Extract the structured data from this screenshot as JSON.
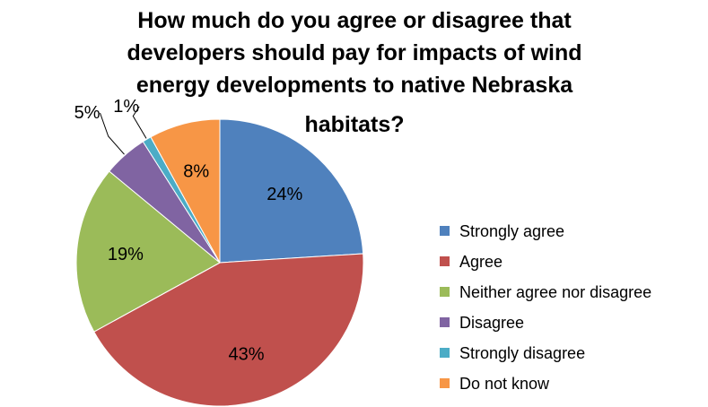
{
  "chart_data": {
    "type": "pie",
    "title_lines": [
      "How much do you agree or disagree that",
      "developers should pay for impacts of wind",
      "energy developments to native Nebraska",
      "habitats?"
    ],
    "categories": [
      "Strongly agree",
      "Agree",
      "Neither agree nor disagree",
      "Disagree",
      "Strongly disagree",
      "Do not know"
    ],
    "values": [
      24,
      43,
      19,
      5,
      1,
      8
    ],
    "value_labels": [
      "24%",
      "43%",
      "19%",
      "5%",
      "1%",
      "8%"
    ],
    "colors": [
      "#4f81bd",
      "#c0504d",
      "#9bbb59",
      "#8064a2",
      "#4bacc6",
      "#f79646"
    ],
    "legend_position": "right"
  }
}
